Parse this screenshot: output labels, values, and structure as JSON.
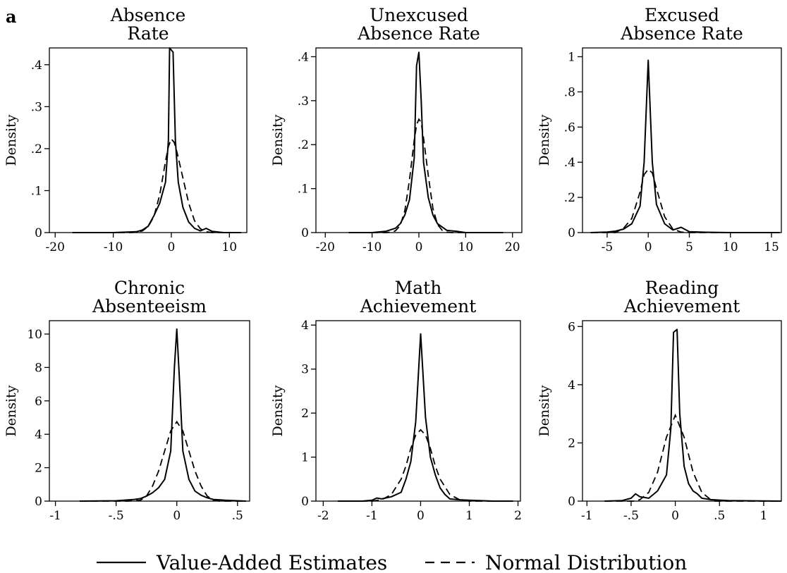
{
  "figure": {
    "corner_label": "a",
    "legend": [
      {
        "label": "Value-Added Estimates",
        "style": "solid"
      },
      {
        "label": "Normal Distribution",
        "style": "dashed"
      }
    ]
  },
  "chart_data": [
    {
      "type": "line",
      "title": [
        "Absence",
        "Rate"
      ],
      "ylabel": "Density",
      "xlim": [
        -21,
        13
      ],
      "ylim": [
        0,
        0.44
      ],
      "xticks": [
        -20,
        -10,
        0,
        10
      ],
      "xtick_labels": [
        "-20",
        "-10",
        "0",
        "10"
      ],
      "yticks": [
        0,
        0.1,
        0.2,
        0.3,
        0.4
      ],
      "ytick_labels": [
        "0",
        ".1",
        ".2",
        ".3",
        ".4"
      ],
      "series": [
        {
          "style": "solid",
          "points": [
            [
              -17,
              0
            ],
            [
              -10,
              0
            ],
            [
              -6,
              0.002
            ],
            [
              -5,
              0.006
            ],
            [
              -4,
              0.015
            ],
            [
              -3,
              0.04
            ],
            [
              -2,
              0.07
            ],
            [
              -1,
              0.12
            ],
            [
              -0.5,
              0.22
            ],
            [
              -0.3,
              0.44
            ],
            [
              0.3,
              0.43
            ],
            [
              0.7,
              0.22
            ],
            [
              1.2,
              0.12
            ],
            [
              2,
              0.06
            ],
            [
              3,
              0.025
            ],
            [
              4,
              0.01
            ],
            [
              5,
              0.004
            ],
            [
              6,
              0.01
            ],
            [
              7,
              0.003
            ],
            [
              9,
              0
            ],
            [
              12,
              0
            ]
          ]
        },
        {
          "style": "dashed",
          "points": [
            [
              -17,
              0
            ],
            [
              -7,
              0
            ],
            [
              -6,
              0.001
            ],
            [
              -5,
              0.004
            ],
            [
              -4,
              0.014
            ],
            [
              -3,
              0.038
            ],
            [
              -2,
              0.09
            ],
            [
              -1,
              0.17
            ],
            [
              -0.5,
              0.205
            ],
            [
              0,
              0.223
            ],
            [
              0.5,
              0.215
            ],
            [
              1,
              0.19
            ],
            [
              2,
              0.13
            ],
            [
              3,
              0.07
            ],
            [
              4,
              0.028
            ],
            [
              5,
              0.009
            ],
            [
              6,
              0.002
            ],
            [
              7,
              0
            ],
            [
              12,
              0
            ]
          ]
        }
      ]
    },
    {
      "type": "line",
      "title": [
        "Unexcused",
        "Absence Rate"
      ],
      "ylabel": "Density",
      "xlim": [
        -22,
        22
      ],
      "ylim": [
        0,
        0.42
      ],
      "xticks": [
        -20,
        -10,
        0,
        10,
        20
      ],
      "xtick_labels": [
        "-20",
        "-10",
        "0",
        "10",
        "20"
      ],
      "yticks": [
        0,
        0.1,
        0.2,
        0.3,
        0.4
      ],
      "ytick_labels": [
        "0",
        ".1",
        ".2",
        ".3",
        ".4"
      ],
      "series": [
        {
          "style": "solid",
          "points": [
            [
              -15,
              0
            ],
            [
              -10,
              0
            ],
            [
              -7,
              0.003
            ],
            [
              -5,
              0.01
            ],
            [
              -4,
              0.02
            ],
            [
              -3,
              0.04
            ],
            [
              -2,
              0.075
            ],
            [
              -1,
              0.17
            ],
            [
              -0.5,
              0.38
            ],
            [
              0,
              0.41
            ],
            [
              0.5,
              0.3
            ],
            [
              1,
              0.16
            ],
            [
              2,
              0.08
            ],
            [
              3,
              0.04
            ],
            [
              4,
              0.02
            ],
            [
              6,
              0.005
            ],
            [
              8,
              0.003
            ],
            [
              10,
              0
            ],
            [
              18,
              0
            ]
          ]
        },
        {
          "style": "dashed",
          "points": [
            [
              -15,
              0
            ],
            [
              -7,
              0
            ],
            [
              -6,
              0.001
            ],
            [
              -5,
              0.004
            ],
            [
              -4,
              0.016
            ],
            [
              -3,
              0.05
            ],
            [
              -2,
              0.12
            ],
            [
              -1,
              0.21
            ],
            [
              -0.5,
              0.245
            ],
            [
              0,
              0.258
            ],
            [
              0.5,
              0.25
            ],
            [
              1,
              0.215
            ],
            [
              2,
              0.13
            ],
            [
              3,
              0.055
            ],
            [
              4,
              0.018
            ],
            [
              5,
              0.005
            ],
            [
              6,
              0.001
            ],
            [
              7,
              0
            ],
            [
              18,
              0
            ]
          ]
        }
      ]
    },
    {
      "type": "line",
      "title": [
        "Excused",
        "Absence Rate"
      ],
      "ylabel": "Density",
      "xlim": [
        -8,
        16.2
      ],
      "ylim": [
        0,
        1.05
      ],
      "xticks": [
        -5,
        0,
        5,
        10,
        15
      ],
      "xtick_labels": [
        "-5",
        "0",
        "5",
        "10",
        "15"
      ],
      "yticks": [
        0,
        0.2,
        0.4,
        0.6,
        0.8,
        1.0
      ],
      "ytick_labels": [
        "0",
        ".2",
        ".4",
        ".6",
        ".8",
        "1"
      ],
      "series": [
        {
          "style": "solid",
          "points": [
            [
              -7,
              0
            ],
            [
              -5,
              0.003
            ],
            [
              -4,
              0.008
            ],
            [
              -3,
              0.02
            ],
            [
              -2,
              0.05
            ],
            [
              -1,
              0.15
            ],
            [
              -0.5,
              0.4
            ],
            [
              0,
              0.98
            ],
            [
              0.5,
              0.4
            ],
            [
              1,
              0.16
            ],
            [
              2,
              0.05
            ],
            [
              3,
              0.015
            ],
            [
              4,
              0.03
            ],
            [
              5,
              0.005
            ],
            [
              7,
              0.002
            ],
            [
              10,
              0
            ],
            [
              16,
              0
            ]
          ]
        },
        {
          "style": "dashed",
          "points": [
            [
              -7,
              0
            ],
            [
              -4,
              0
            ],
            [
              -3,
              0.025
            ],
            [
              -2,
              0.08
            ],
            [
              -1,
              0.23
            ],
            [
              -0.5,
              0.33
            ],
            [
              0,
              0.36
            ],
            [
              0.5,
              0.34
            ],
            [
              1,
              0.25
            ],
            [
              2,
              0.09
            ],
            [
              3,
              0.02
            ],
            [
              4,
              0.003
            ],
            [
              5,
              0
            ],
            [
              16,
              0
            ]
          ]
        }
      ]
    },
    {
      "type": "line",
      "title": [
        "Chronic",
        "Absenteeism"
      ],
      "ylabel": "Density",
      "xlim": [
        -1.05,
        0.6
      ],
      "ylim": [
        0,
        10.8
      ],
      "xticks": [
        -1,
        -0.5,
        0,
        0.5
      ],
      "xtick_labels": [
        "-1",
        "-.5",
        "0",
        ".5"
      ],
      "yticks": [
        0,
        2,
        4,
        6,
        8,
        10
      ],
      "ytick_labels": [
        "0",
        "2",
        "4",
        "6",
        "8",
        "10"
      ],
      "series": [
        {
          "style": "solid",
          "points": [
            [
              -0.8,
              0
            ],
            [
              -0.5,
              0.02
            ],
            [
              -0.35,
              0.1
            ],
            [
              -0.3,
              0.15
            ],
            [
              -0.25,
              0.3
            ],
            [
              -0.2,
              0.5
            ],
            [
              -0.15,
              0.8
            ],
            [
              -0.1,
              1.3
            ],
            [
              -0.05,
              3.0
            ],
            [
              -0.02,
              8.0
            ],
            [
              0,
              10.3
            ],
            [
              0.02,
              7.5
            ],
            [
              0.05,
              3.0
            ],
            [
              0.1,
              1.3
            ],
            [
              0.15,
              0.6
            ],
            [
              0.2,
              0.35
            ],
            [
              0.25,
              0.2
            ],
            [
              0.3,
              0.1
            ],
            [
              0.4,
              0.05
            ],
            [
              0.5,
              0.02
            ],
            [
              0.57,
              0
            ]
          ]
        },
        {
          "style": "dashed",
          "points": [
            [
              -0.8,
              0
            ],
            [
              -0.4,
              0
            ],
            [
              -0.3,
              0.05
            ],
            [
              -0.25,
              0.3
            ],
            [
              -0.2,
              0.9
            ],
            [
              -0.15,
              1.8
            ],
            [
              -0.1,
              3.0
            ],
            [
              -0.05,
              4.2
            ],
            [
              0,
              4.75
            ],
            [
              0.05,
              4.2
            ],
            [
              0.1,
              3.0
            ],
            [
              0.15,
              1.8
            ],
            [
              0.2,
              0.9
            ],
            [
              0.25,
              0.3
            ],
            [
              0.3,
              0.05
            ],
            [
              0.35,
              0
            ],
            [
              0.57,
              0
            ]
          ]
        }
      ]
    },
    {
      "type": "line",
      "title": [
        "Math",
        "Achievement"
      ],
      "ylabel": "Density",
      "xlim": [
        -2.15,
        2.05
      ],
      "ylim": [
        0,
        4.1
      ],
      "xticks": [
        -2,
        -1,
        0,
        1,
        2
      ],
      "xtick_labels": [
        "-2",
        "-1",
        "0",
        "1",
        "2"
      ],
      "yticks": [
        0,
        1,
        2,
        3,
        4
      ],
      "ytick_labels": [
        "0",
        "1",
        "2",
        "3",
        "4"
      ],
      "series": [
        {
          "style": "solid",
          "points": [
            [
              -1.7,
              0
            ],
            [
              -1.2,
              0
            ],
            [
              -1,
              0.02
            ],
            [
              -0.9,
              0.07
            ],
            [
              -0.8,
              0.05
            ],
            [
              -0.6,
              0.1
            ],
            [
              -0.4,
              0.2
            ],
            [
              -0.3,
              0.5
            ],
            [
              -0.2,
              0.9
            ],
            [
              -0.1,
              1.8
            ],
            [
              0,
              3.8
            ],
            [
              0.1,
              1.9
            ],
            [
              0.2,
              1.0
            ],
            [
              0.3,
              0.6
            ],
            [
              0.4,
              0.3
            ],
            [
              0.5,
              0.15
            ],
            [
              0.6,
              0.05
            ],
            [
              0.8,
              0.03
            ],
            [
              1.0,
              0.02
            ],
            [
              1.5,
              0
            ],
            [
              1.9,
              0
            ]
          ]
        },
        {
          "style": "dashed",
          "points": [
            [
              -1.7,
              0
            ],
            [
              -1,
              0
            ],
            [
              -0.8,
              0.03
            ],
            [
              -0.6,
              0.15
            ],
            [
              -0.4,
              0.5
            ],
            [
              -0.3,
              0.8
            ],
            [
              -0.2,
              1.2
            ],
            [
              -0.1,
              1.5
            ],
            [
              0,
              1.62
            ],
            [
              0.1,
              1.5
            ],
            [
              0.2,
              1.2
            ],
            [
              0.3,
              0.8
            ],
            [
              0.4,
              0.5
            ],
            [
              0.6,
              0.15
            ],
            [
              0.8,
              0.03
            ],
            [
              1,
              0
            ],
            [
              1.9,
              0
            ]
          ]
        }
      ]
    },
    {
      "type": "line",
      "title": [
        "Reading",
        "Achievement"
      ],
      "ylabel": "Density",
      "xlim": [
        -1.05,
        1.2
      ],
      "ylim": [
        0,
        6.2
      ],
      "xticks": [
        -1,
        -0.5,
        0,
        0.5,
        1
      ],
      "xtick_labels": [
        "-1",
        "-.5",
        "0",
        ".5",
        "1"
      ],
      "yticks": [
        0,
        2,
        4,
        6
      ],
      "ytick_labels": [
        "0",
        "2",
        "4",
        "6"
      ],
      "series": [
        {
          "style": "solid",
          "points": [
            [
              -0.8,
              0
            ],
            [
              -0.6,
              0.02
            ],
            [
              -0.5,
              0.1
            ],
            [
              -0.45,
              0.25
            ],
            [
              -0.4,
              0.15
            ],
            [
              -0.3,
              0.1
            ],
            [
              -0.2,
              0.35
            ],
            [
              -0.1,
              0.9
            ],
            [
              -0.05,
              2.5
            ],
            [
              -0.02,
              5.8
            ],
            [
              0.02,
              5.9
            ],
            [
              0.05,
              3.0
            ],
            [
              0.1,
              1.2
            ],
            [
              0.15,
              0.6
            ],
            [
              0.2,
              0.35
            ],
            [
              0.25,
              0.25
            ],
            [
              0.3,
              0.1
            ],
            [
              0.4,
              0.05
            ],
            [
              0.6,
              0.02
            ],
            [
              1.2,
              0
            ]
          ]
        },
        {
          "style": "dashed",
          "points": [
            [
              -0.8,
              0
            ],
            [
              -0.45,
              0
            ],
            [
              -0.4,
              0.05
            ],
            [
              -0.3,
              0.3
            ],
            [
              -0.2,
              1.0
            ],
            [
              -0.1,
              2.2
            ],
            [
              0,
              2.95
            ],
            [
              0.1,
              2.2
            ],
            [
              0.2,
              1.0
            ],
            [
              0.3,
              0.3
            ],
            [
              0.4,
              0.05
            ],
            [
              0.45,
              0
            ],
            [
              1.2,
              0
            ]
          ]
        }
      ]
    }
  ]
}
